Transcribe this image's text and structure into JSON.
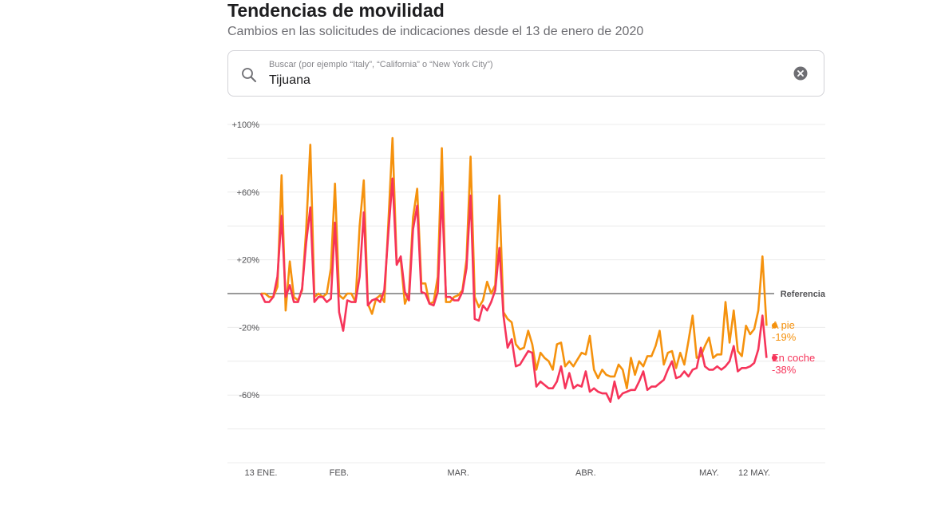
{
  "header": {
    "title": "Tendencias de movilidad",
    "subtitle": "Cambios en las solicitudes de indicaciones desde el 13 de enero de 2020"
  },
  "search": {
    "placeholder": "Buscar (por ejemplo “Italy”, “California” o “New York City”)",
    "value": "Tijuana",
    "icon": "search-icon",
    "clear_icon": "clear-icon"
  },
  "chart_data": {
    "type": "line",
    "x_start": "2020-01-13",
    "x_end": "2020-05-12",
    "y_ticks": [
      {
        "value": 100,
        "label": "+100%"
      },
      {
        "value": 60,
        "label": "+60%"
      },
      {
        "value": 20,
        "label": "+20%"
      },
      {
        "value": -20,
        "label": "-20%"
      },
      {
        "value": -60,
        "label": "-60%"
      }
    ],
    "ylim": [
      -100,
      100
    ],
    "x_ticks": [
      {
        "date": "2020-01-13",
        "label": "13 ENE."
      },
      {
        "date": "2020-02-01",
        "label": "FEB."
      },
      {
        "date": "2020-03-01",
        "label": "MAR."
      },
      {
        "date": "2020-04-01",
        "label": "ABR."
      },
      {
        "date": "2020-05-01",
        "label": "MAY."
      },
      {
        "date": "2020-05-12",
        "label": "12 MAY."
      }
    ],
    "baseline": {
      "value": 0,
      "label": "Referencia"
    },
    "grid": true,
    "legend_placement": "right",
    "series": [
      {
        "name": "A pie",
        "last_label": "-19%",
        "color": "#f5920e",
        "values": [
          0,
          0,
          -2,
          -2,
          4,
          70,
          -10,
          19,
          -2,
          -4,
          2,
          38,
          88,
          -2,
          0,
          -2,
          0,
          15,
          65,
          -1,
          -3,
          0,
          0,
          -5,
          40,
          67,
          -6,
          -12,
          -3,
          -1,
          -5,
          42,
          92,
          18,
          20,
          -6,
          0,
          45,
          62,
          6,
          6,
          -6,
          -5,
          10,
          86,
          -5,
          -5,
          -2,
          -1,
          2,
          20,
          81,
          -2,
          -8,
          -4,
          7,
          0,
          5,
          58,
          -11,
          -15,
          -17,
          -30,
          -33,
          -32,
          -22,
          -30,
          -45,
          -35,
          -38,
          -40,
          -45,
          -30,
          -29,
          -43,
          -40,
          -43,
          -39,
          -35,
          -36,
          -25,
          -45,
          -50,
          -45,
          -48,
          -49,
          -49,
          -42,
          -45,
          -56,
          -38,
          -48,
          -40,
          -43,
          -37,
          -37,
          -31,
          -22,
          -42,
          -35,
          -34,
          -44,
          -35,
          -42,
          -28,
          -13,
          -38,
          -37,
          -31,
          -26,
          -38,
          -36,
          -36,
          -5,
          -29,
          -10,
          -34,
          -37,
          -19,
          -24,
          -21,
          -10,
          22,
          -19
        ]
      },
      {
        "name": "En coche",
        "last_label": "-38%",
        "color": "#f6345a",
        "values": [
          0,
          -5,
          -5,
          -2,
          10,
          46,
          -2,
          5,
          -5,
          -5,
          3,
          30,
          51,
          -5,
          -2,
          -2,
          -5,
          -3,
          42,
          -11,
          -22,
          -4,
          -5,
          -5,
          10,
          48,
          -7,
          -4,
          -3,
          -5,
          2,
          36,
          68,
          17,
          22,
          1,
          -4,
          38,
          52,
          1,
          0,
          -6,
          -7,
          1,
          60,
          -2,
          -2,
          -4,
          -4,
          1,
          15,
          58,
          -15,
          -16,
          -7,
          -10,
          -5,
          2,
          27,
          -13,
          -32,
          -27,
          -43,
          -42,
          -38,
          -34,
          -35,
          -55,
          -52,
          -54,
          -56,
          -56,
          -52,
          -43,
          -56,
          -47,
          -56,
          -54,
          -55,
          -46,
          -58,
          -56,
          -58,
          -59,
          -59,
          -64,
          -52,
          -62,
          -59,
          -58,
          -57,
          -57,
          -52,
          -46,
          -57,
          -55,
          -55,
          -53,
          -51,
          -45,
          -40,
          -50,
          -49,
          -46,
          -49,
          -45,
          -44,
          -32,
          -43,
          -45,
          -45,
          -43,
          -45,
          -43,
          -40,
          -31,
          -46,
          -44,
          -44,
          -43,
          -41,
          -33,
          -13,
          -38
        ]
      }
    ]
  }
}
